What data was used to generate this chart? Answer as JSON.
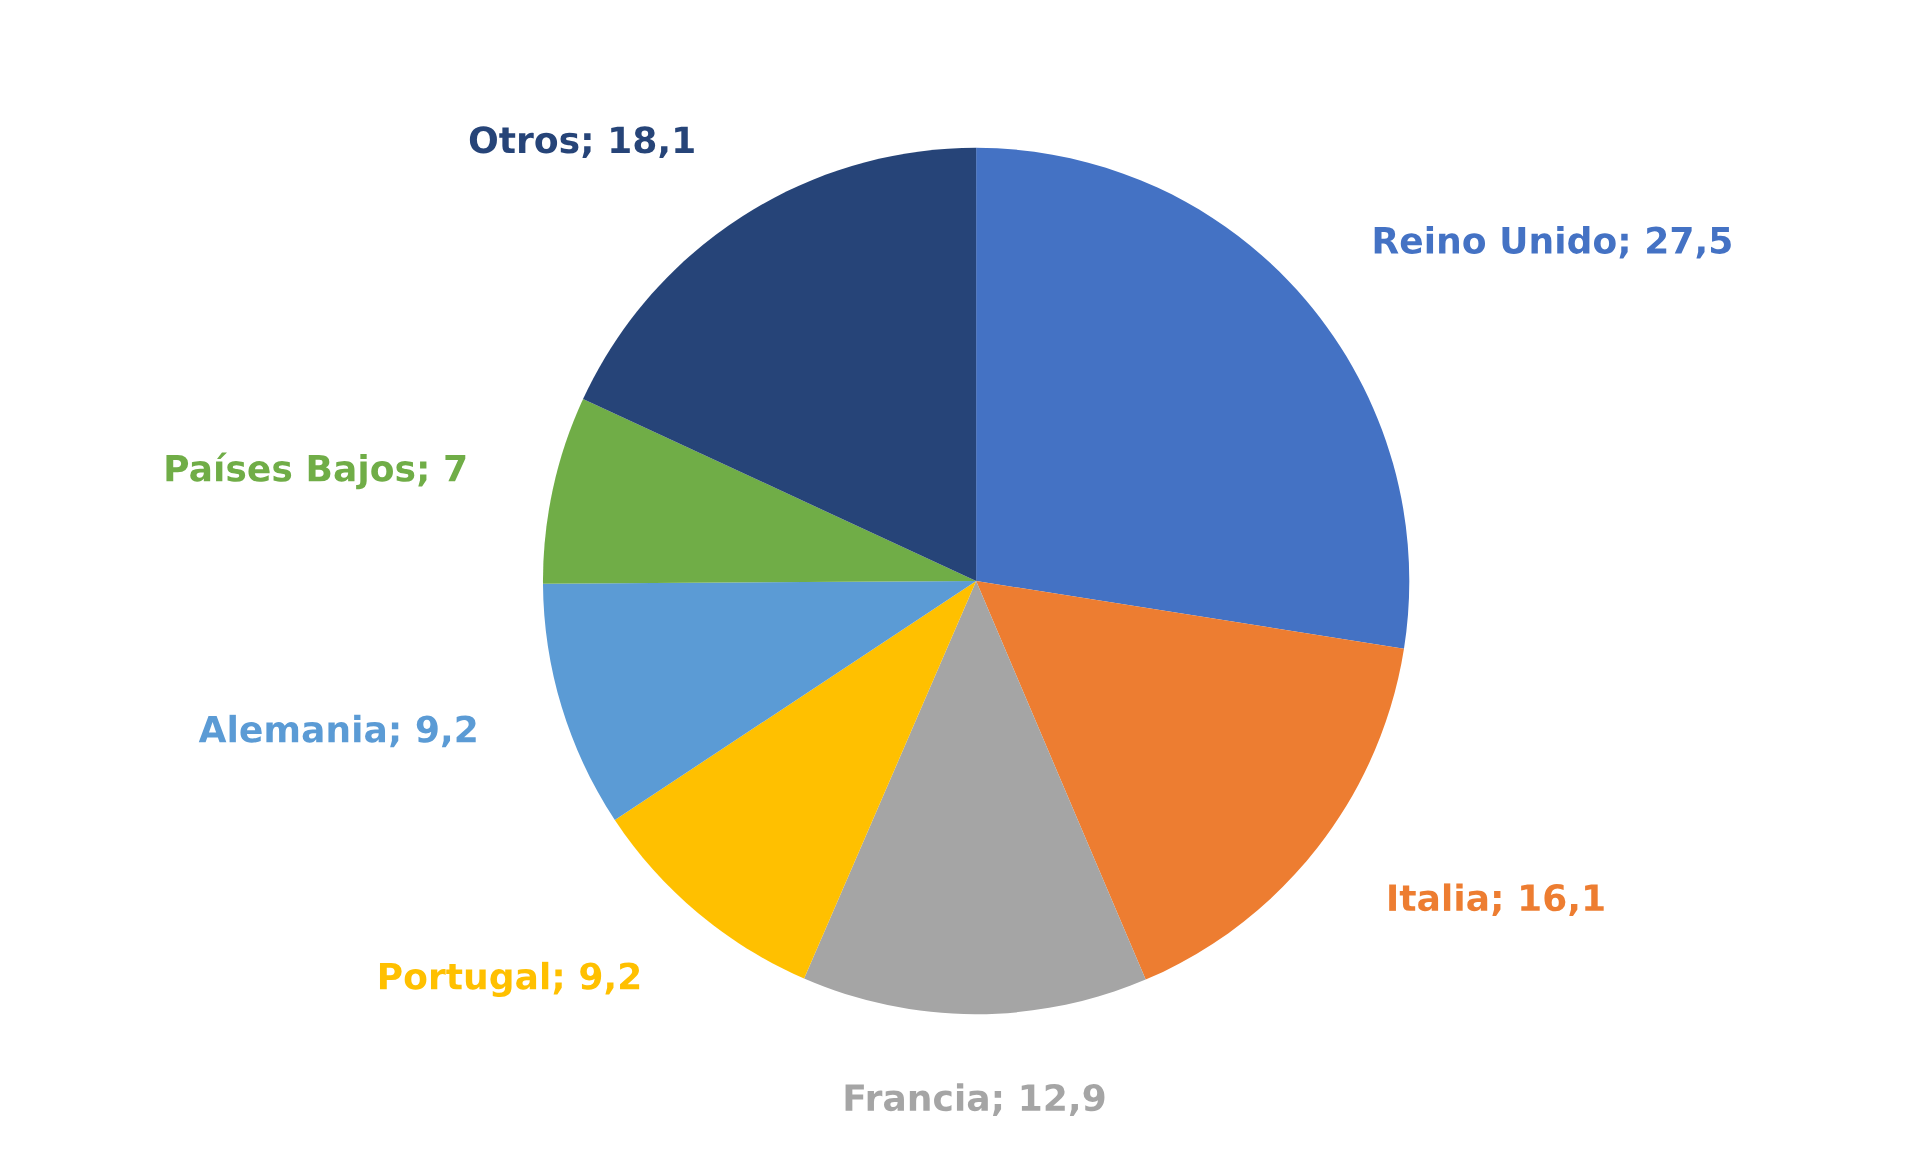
{
  "chart_data": {
    "type": "pie",
    "categories": [
      "Reino Unido",
      "Italia",
      "Francia",
      "Portugal",
      "Alemania",
      "Países Bajos",
      "Otros"
    ],
    "values": [
      27.5,
      16.1,
      12.9,
      9.2,
      9.2,
      7,
      18.1
    ],
    "value_labels": [
      "27,5",
      "16,1",
      "12,9",
      "9,2",
      "9,2",
      "7",
      "18,1"
    ],
    "colors": [
      "#4472c4",
      "#ed7d31",
      "#a5a5a5",
      "#ffc000",
      "#5b9bd5",
      "#70ad47",
      "#264478"
    ]
  }
}
